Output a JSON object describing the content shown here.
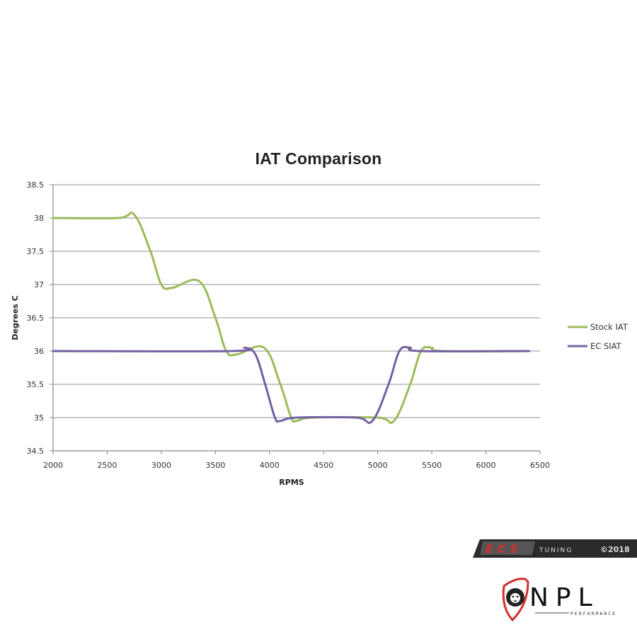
{
  "chart_data": {
    "type": "line",
    "title": "IAT Comparison",
    "xlabel": "RPMS",
    "ylabel": "Degrees C",
    "xlim": [
      2000,
      6500
    ],
    "ylim": [
      34.5,
      38.5
    ],
    "x_ticks": [
      2000,
      2500,
      3000,
      3500,
      4000,
      4500,
      5000,
      5500,
      6000,
      6500
    ],
    "y_ticks": [
      34.5,
      35,
      35.5,
      36,
      36.5,
      37,
      37.5,
      38,
      38.5
    ],
    "grid": "horizontal",
    "legend_position": "right",
    "series": [
      {
        "name": "Stock IAT",
        "color": "#9BBB59",
        "points": [
          [
            2000,
            38.0
          ],
          [
            2600,
            38.0
          ],
          [
            2750,
            38.05
          ],
          [
            2900,
            37.5
          ],
          [
            3000,
            37.0
          ],
          [
            3100,
            36.95
          ],
          [
            3350,
            37.05
          ],
          [
            3500,
            36.5
          ],
          [
            3600,
            36.0
          ],
          [
            3700,
            35.95
          ],
          [
            3950,
            36.05
          ],
          [
            4100,
            35.5
          ],
          [
            4200,
            35.0
          ],
          [
            4250,
            34.95
          ],
          [
            4400,
            35.0
          ],
          [
            5000,
            35.0
          ],
          [
            5150,
            34.95
          ],
          [
            5300,
            35.5
          ],
          [
            5400,
            36.0
          ],
          [
            5500,
            36.05
          ],
          [
            5600,
            36.0
          ],
          [
            6400,
            36.0
          ]
        ]
      },
      {
        "name": "EC SIAT",
        "color": "#7460A2",
        "points": [
          [
            2000,
            36.0
          ],
          [
            3650,
            36.0
          ],
          [
            3770,
            36.05
          ],
          [
            3870,
            35.95
          ],
          [
            3960,
            35.5
          ],
          [
            4050,
            35.0
          ],
          [
            4100,
            34.95
          ],
          [
            4250,
            35.0
          ],
          [
            4800,
            35.0
          ],
          [
            4950,
            34.95
          ],
          [
            5100,
            35.5
          ],
          [
            5200,
            36.0
          ],
          [
            5300,
            36.05
          ],
          [
            5400,
            36.0
          ],
          [
            6400,
            36.0
          ]
        ]
      }
    ]
  },
  "branding": {
    "ecs_text": "ECS",
    "ecs_sub": "TUNING",
    "ecs_copyright": "©2018",
    "npl_text": "NPL",
    "npl_sub": "PERFORMANCE"
  }
}
